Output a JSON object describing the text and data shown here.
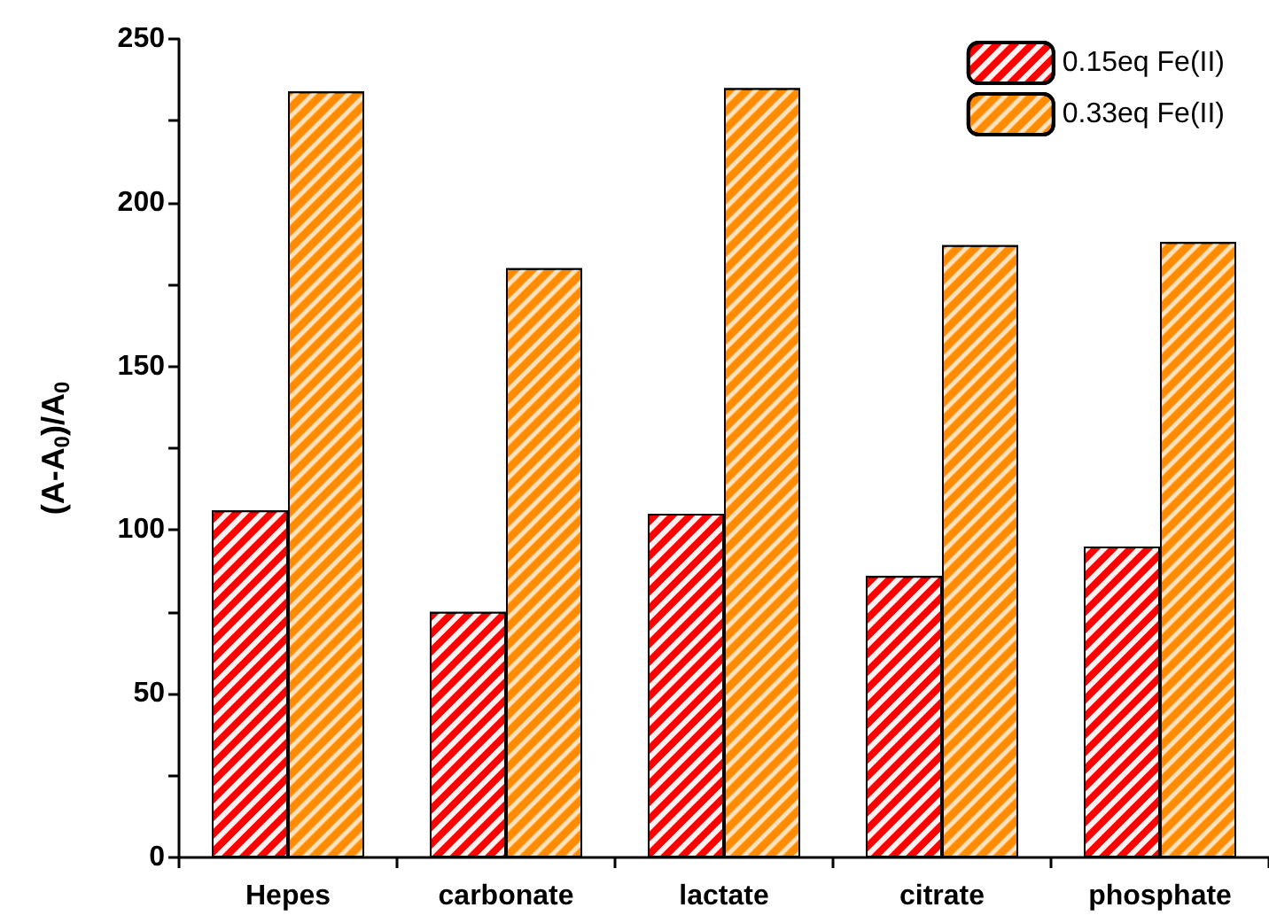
{
  "chart_data": {
    "type": "bar",
    "ylabel": "(A-A$_{0}$)/A$_{0}$",
    "categories": [
      "Hepes",
      "carbonate",
      "lactate",
      "citrate",
      "phosphate"
    ],
    "series": [
      {
        "name": "0.15eq Fe(II)",
        "color": "#ff0000",
        "values": [
          106,
          75,
          105,
          86,
          95
        ]
      },
      {
        "name": "0.33eq Fe(II)",
        "color": "#ff8c00",
        "values": [
          234,
          180,
          235,
          187,
          188
        ]
      }
    ],
    "ylim": [
      0,
      250
    ],
    "yticks": [
      0,
      {
        "value": 25,
        "label": null
      },
      50,
      {
        "value": 75,
        "label": null
      },
      100,
      {
        "value": 125,
        "label": null
      },
      150,
      {
        "value": 175,
        "label": null
      },
      200,
      {
        "value": 225,
        "label": null
      },
      250
    ],
    "grid": false,
    "legend": "top right"
  }
}
